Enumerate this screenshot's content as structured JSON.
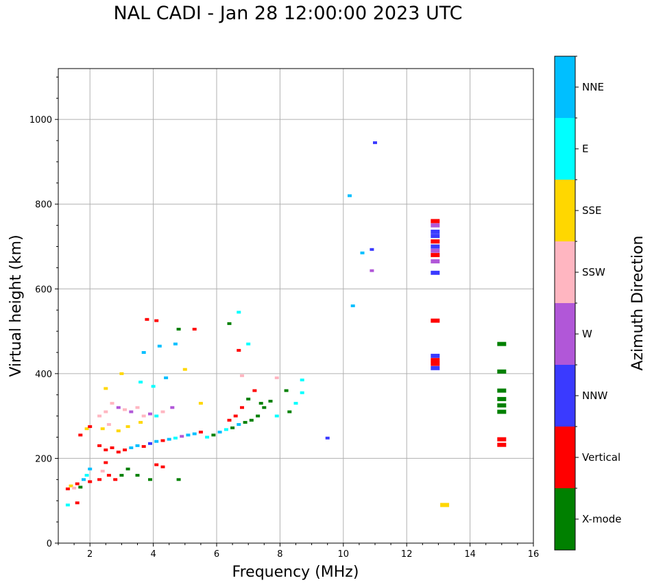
{
  "chart_data": {
    "type": "scatter",
    "title": "NAL CADI - Jan 28 12:00:00 2023 UTC",
    "xlabel": "Frequency (MHz)",
    "ylabel": "Virtual height (km)",
    "xlim": [
      1,
      16
    ],
    "ylim": [
      0,
      1120
    ],
    "xticks": [
      2,
      4,
      6,
      8,
      10,
      12,
      14,
      16
    ],
    "yticks": [
      0,
      200,
      400,
      600,
      800,
      1000
    ],
    "grid": true,
    "colorbar": {
      "title": "Azimuth Direction",
      "categories": [
        {
          "name": "X-mode",
          "color": "#008000"
        },
        {
          "name": "Vertical",
          "color": "#ff0000"
        },
        {
          "name": "NNW",
          "color": "#3a3aff"
        },
        {
          "name": "W",
          "color": "#b157d8"
        },
        {
          "name": "SSW",
          "color": "#ffb6c1"
        },
        {
          "name": "SSE",
          "color": "#ffd700"
        },
        {
          "name": "E",
          "color": "#00ffff"
        },
        {
          "name": "NNE",
          "color": "#00bfff"
        }
      ]
    },
    "points": [
      {
        "f": 1.3,
        "h": 128,
        "c": "Vertical"
      },
      {
        "f": 1.4,
        "h": 135,
        "c": "SSE"
      },
      {
        "f": 1.5,
        "h": 130,
        "c": "SSW"
      },
      {
        "f": 1.6,
        "h": 140,
        "c": "Vertical"
      },
      {
        "f": 1.7,
        "h": 132,
        "c": "X-mode"
      },
      {
        "f": 1.8,
        "h": 150,
        "c": "NNE"
      },
      {
        "f": 1.9,
        "h": 160,
        "c": "E"
      },
      {
        "f": 2.0,
        "h": 175,
        "c": "NNE"
      },
      {
        "f": 2.0,
        "h": 145,
        "c": "Vertical"
      },
      {
        "f": 1.3,
        "h": 90,
        "c": "E"
      },
      {
        "f": 1.6,
        "h": 95,
        "c": "Vertical"
      },
      {
        "f": 1.7,
        "h": 255,
        "c": "Vertical"
      },
      {
        "f": 1.9,
        "h": 270,
        "c": "SSE"
      },
      {
        "f": 2.0,
        "h": 275,
        "c": "Vertical"
      },
      {
        "f": 2.3,
        "h": 150,
        "c": "Vertical"
      },
      {
        "f": 2.4,
        "h": 170,
        "c": "SSW"
      },
      {
        "f": 2.5,
        "h": 190,
        "c": "Vertical"
      },
      {
        "f": 2.6,
        "h": 160,
        "c": "Vertical"
      },
      {
        "f": 2.8,
        "h": 150,
        "c": "Vertical"
      },
      {
        "f": 3.0,
        "h": 160,
        "c": "X-mode"
      },
      {
        "f": 3.2,
        "h": 175,
        "c": "X-mode"
      },
      {
        "f": 3.5,
        "h": 160,
        "c": "X-mode"
      },
      {
        "f": 3.9,
        "h": 150,
        "c": "X-mode"
      },
      {
        "f": 4.1,
        "h": 185,
        "c": "Vertical"
      },
      {
        "f": 4.3,
        "h": 180,
        "c": "Vertical"
      },
      {
        "f": 4.8,
        "h": 150,
        "c": "X-mode"
      },
      {
        "f": 2.3,
        "h": 230,
        "c": "Vertical"
      },
      {
        "f": 2.5,
        "h": 220,
        "c": "Vertical"
      },
      {
        "f": 2.7,
        "h": 225,
        "c": "Vertical"
      },
      {
        "f": 2.9,
        "h": 215,
        "c": "Vertical"
      },
      {
        "f": 3.1,
        "h": 220,
        "c": "Vertical"
      },
      {
        "f": 3.3,
        "h": 225,
        "c": "NNE"
      },
      {
        "f": 3.5,
        "h": 230,
        "c": "NNE"
      },
      {
        "f": 3.7,
        "h": 228,
        "c": "Vertical"
      },
      {
        "f": 3.9,
        "h": 235,
        "c": "NNW"
      },
      {
        "f": 4.1,
        "h": 240,
        "c": "NNE"
      },
      {
        "f": 4.3,
        "h": 242,
        "c": "Vertical"
      },
      {
        "f": 4.5,
        "h": 245,
        "c": "NNE"
      },
      {
        "f": 4.7,
        "h": 248,
        "c": "E"
      },
      {
        "f": 4.9,
        "h": 252,
        "c": "W"
      },
      {
        "f": 5.1,
        "h": 255,
        "c": "NNE"
      },
      {
        "f": 5.3,
        "h": 258,
        "c": "NNE"
      },
      {
        "f": 5.5,
        "h": 262,
        "c": "Vertical"
      },
      {
        "f": 5.7,
        "h": 250,
        "c": "E"
      },
      {
        "f": 5.9,
        "h": 255,
        "c": "X-mode"
      },
      {
        "f": 6.1,
        "h": 262,
        "c": "NNE"
      },
      {
        "f": 6.3,
        "h": 268,
        "c": "E"
      },
      {
        "f": 6.5,
        "h": 272,
        "c": "X-mode"
      },
      {
        "f": 6.7,
        "h": 280,
        "c": "NNE"
      },
      {
        "f": 6.9,
        "h": 285,
        "c": "X-mode"
      },
      {
        "f": 7.1,
        "h": 290,
        "c": "X-mode"
      },
      {
        "f": 7.3,
        "h": 300,
        "c": "X-mode"
      },
      {
        "f": 7.5,
        "h": 320,
        "c": "X-mode"
      },
      {
        "f": 7.7,
        "h": 335,
        "c": "X-mode"
      },
      {
        "f": 7.9,
        "h": 300,
        "c": "E"
      },
      {
        "f": 8.3,
        "h": 310,
        "c": "X-mode"
      },
      {
        "f": 8.5,
        "h": 330,
        "c": "E"
      },
      {
        "f": 8.7,
        "h": 355,
        "c": "E"
      },
      {
        "f": 8.7,
        "h": 385,
        "c": "E"
      },
      {
        "f": 6.6,
        "h": 300,
        "c": "Vertical"
      },
      {
        "f": 6.8,
        "h": 320,
        "c": "Vertical"
      },
      {
        "f": 7.0,
        "h": 340,
        "c": "X-mode"
      },
      {
        "f": 7.2,
        "h": 360,
        "c": "Vertical"
      },
      {
        "f": 7.4,
        "h": 330,
        "c": "X-mode"
      },
      {
        "f": 6.4,
        "h": 290,
        "c": "Vertical"
      },
      {
        "f": 2.3,
        "h": 300,
        "c": "SSW"
      },
      {
        "f": 2.5,
        "h": 310,
        "c": "SSW"
      },
      {
        "f": 2.7,
        "h": 330,
        "c": "SSW"
      },
      {
        "f": 2.9,
        "h": 320,
        "c": "W"
      },
      {
        "f": 3.1,
        "h": 315,
        "c": "SSW"
      },
      {
        "f": 3.3,
        "h": 310,
        "c": "W"
      },
      {
        "f": 3.5,
        "h": 320,
        "c": "SSW"
      },
      {
        "f": 3.7,
        "h": 300,
        "c": "SSW"
      },
      {
        "f": 3.9,
        "h": 305,
        "c": "W"
      },
      {
        "f": 4.1,
        "h": 300,
        "c": "E"
      },
      {
        "f": 4.3,
        "h": 310,
        "c": "SSW"
      },
      {
        "f": 4.6,
        "h": 320,
        "c": "W"
      },
      {
        "f": 2.4,
        "h": 270,
        "c": "SSE"
      },
      {
        "f": 2.6,
        "h": 280,
        "c": "SSW"
      },
      {
        "f": 2.9,
        "h": 265,
        "c": "SSE"
      },
      {
        "f": 3.2,
        "h": 275,
        "c": "SSE"
      },
      {
        "f": 3.6,
        "h": 285,
        "c": "SSE"
      },
      {
        "f": 2.5,
        "h": 365,
        "c": "SSE"
      },
      {
        "f": 3.0,
        "h": 400,
        "c": "SSE"
      },
      {
        "f": 3.6,
        "h": 380,
        "c": "E"
      },
      {
        "f": 4.0,
        "h": 370,
        "c": "E"
      },
      {
        "f": 4.4,
        "h": 390,
        "c": "NNE"
      },
      {
        "f": 5.0,
        "h": 410,
        "c": "SSE"
      },
      {
        "f": 5.5,
        "h": 330,
        "c": "SSE"
      },
      {
        "f": 3.7,
        "h": 450,
        "c": "NNE"
      },
      {
        "f": 4.2,
        "h": 465,
        "c": "NNE"
      },
      {
        "f": 4.7,
        "h": 470,
        "c": "NNE"
      },
      {
        "f": 3.8,
        "h": 528,
        "c": "Vertical"
      },
      {
        "f": 4.1,
        "h": 525,
        "c": "Vertical"
      },
      {
        "f": 4.8,
        "h": 505,
        "c": "X-mode"
      },
      {
        "f": 5.3,
        "h": 505,
        "c": "Vertical"
      },
      {
        "f": 6.4,
        "h": 518,
        "c": "X-mode"
      },
      {
        "f": 6.7,
        "h": 545,
        "c": "E"
      },
      {
        "f": 6.7,
        "h": 455,
        "c": "Vertical"
      },
      {
        "f": 7.0,
        "h": 470,
        "c": "E"
      },
      {
        "f": 6.8,
        "h": 395,
        "c": "SSW"
      },
      {
        "f": 7.9,
        "h": 390,
        "c": "SSW"
      },
      {
        "f": 8.2,
        "h": 360,
        "c": "X-mode"
      },
      {
        "f": 9.5,
        "h": 248,
        "c": "NNW"
      },
      {
        "f": 10.3,
        "h": 560,
        "c": "NNE"
      },
      {
        "f": 10.6,
        "h": 685,
        "c": "NNE"
      },
      {
        "f": 10.9,
        "h": 693,
        "c": "NNW"
      },
      {
        "f": 10.9,
        "h": 643,
        "c": "W"
      },
      {
        "f": 10.2,
        "h": 820,
        "c": "NNE"
      },
      {
        "f": 11.0,
        "h": 945,
        "c": "NNW"
      },
      {
        "f": 13.2,
        "h": 90,
        "c": "SSE"
      },
      {
        "f": 12.9,
        "h": 760,
        "c": "Vertical"
      },
      {
        "f": 12.9,
        "h": 750,
        "c": "W"
      },
      {
        "f": 12.9,
        "h": 735,
        "c": "NNW"
      },
      {
        "f": 12.9,
        "h": 725,
        "c": "NNW"
      },
      {
        "f": 12.9,
        "h": 712,
        "c": "Vertical"
      },
      {
        "f": 12.9,
        "h": 700,
        "c": "NNW"
      },
      {
        "f": 12.9,
        "h": 690,
        "c": "W"
      },
      {
        "f": 12.9,
        "h": 680,
        "c": "Vertical"
      },
      {
        "f": 12.9,
        "h": 665,
        "c": "W"
      },
      {
        "f": 12.9,
        "h": 638,
        "c": "NNW"
      },
      {
        "f": 12.9,
        "h": 525,
        "c": "Vertical"
      },
      {
        "f": 12.9,
        "h": 442,
        "c": "NNW"
      },
      {
        "f": 12.9,
        "h": 432,
        "c": "Vertical"
      },
      {
        "f": 12.9,
        "h": 423,
        "c": "Vertical"
      },
      {
        "f": 12.9,
        "h": 413,
        "c": "NNW"
      },
      {
        "f": 15.0,
        "h": 470,
        "c": "X-mode"
      },
      {
        "f": 15.0,
        "h": 405,
        "c": "X-mode"
      },
      {
        "f": 15.0,
        "h": 360,
        "c": "X-mode"
      },
      {
        "f": 15.0,
        "h": 340,
        "c": "X-mode"
      },
      {
        "f": 15.0,
        "h": 325,
        "c": "X-mode"
      },
      {
        "f": 15.0,
        "h": 310,
        "c": "X-mode"
      },
      {
        "f": 15.0,
        "h": 245,
        "c": "Vertical"
      },
      {
        "f": 15.0,
        "h": 232,
        "c": "Vertical"
      }
    ]
  }
}
